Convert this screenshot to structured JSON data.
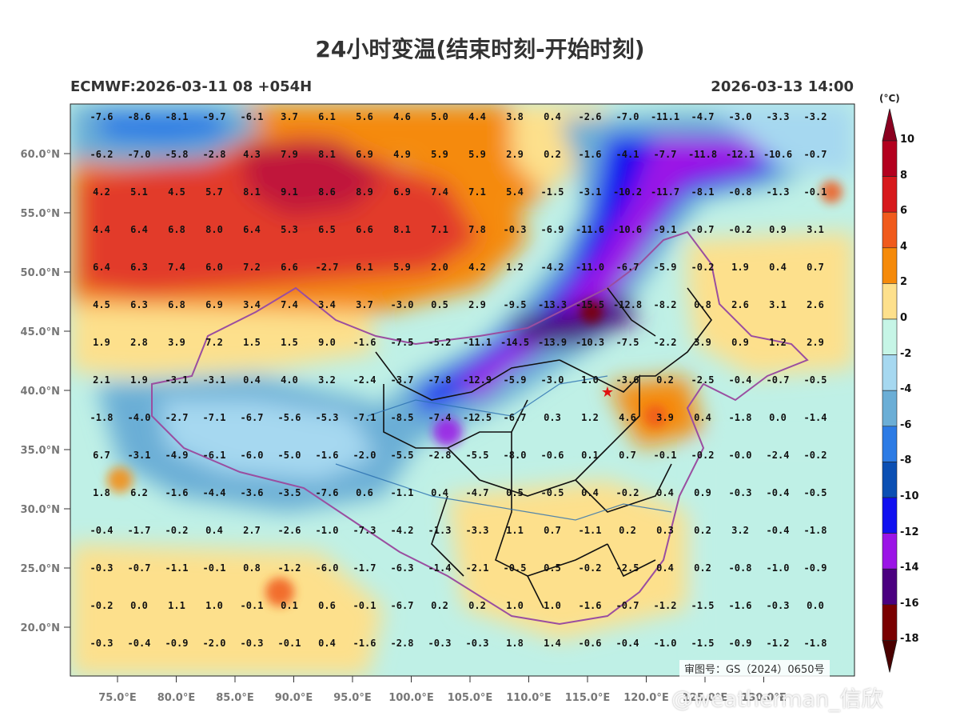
{
  "title": "24小时变温(结束时刻-开始时刻)",
  "model_run": "ECMWF:2026-03-11 08 +054H",
  "valid_time": "2026-03-13 14:00",
  "unit": "(°C)",
  "review_number": "审图号：GS（2024）0650号",
  "watermark": "@weatherman_信欣",
  "lat_ticks": [
    "60.0°N",
    "55.0°N",
    "50.0°N",
    "45.0°N",
    "40.0°N",
    "35.0°N",
    "30.0°N",
    "25.0°N",
    "20.0°N"
  ],
  "lon_ticks": [
    "75.0°E",
    "80.0°E",
    "85.0°E",
    "90.0°E",
    "95.0°E",
    "100.0°E",
    "105.0°E",
    "110.0°E",
    "115.0°E",
    "120.0°E",
    "125.0°E",
    "130.0°E"
  ],
  "colorbar": {
    "labels": [
      "10",
      "8",
      "6",
      "4",
      "2",
      "0",
      "-2",
      "-4",
      "-6",
      "-8",
      "-10",
      "-12",
      "-14",
      "-16",
      "-18"
    ],
    "colors": [
      "#b3001e",
      "#d7191c",
      "#f05a1c",
      "#f58a0a",
      "#fde08c",
      "#c6f5e6",
      "#a6d8f0",
      "#6baed6",
      "#2c7be5",
      "#0b4fb3",
      "#1010f0",
      "#9b14e6",
      "#4b0080",
      "#7a0000"
    ],
    "top_color": "#8b0020",
    "bottom_color": "#4a0000"
  },
  "grid_values": [
    [
      "-7.6",
      "-8.6",
      "-8.1",
      "-9.7",
      "-6.1",
      "3.7",
      "6.1",
      "5.6",
      "4.6",
      "5.0",
      "4.4",
      "3.8",
      "0.4",
      "-2.6",
      "-7.0",
      "-11.1",
      "-4.7",
      "-3.0",
      "-3.3",
      "-3.2"
    ],
    [
      "-6.2",
      "-7.0",
      "-5.8",
      "-2.8",
      "4.3",
      "7.9",
      "8.1",
      "6.9",
      "4.9",
      "5.9",
      "5.9",
      "2.9",
      "0.2",
      "-1.6",
      "-4.1",
      "-7.7",
      "-11.8",
      "-12.1",
      "-10.6",
      "-0.7"
    ],
    [
      "4.2",
      "5.1",
      "4.5",
      "5.7",
      "8.1",
      "9.1",
      "8.6",
      "8.9",
      "6.9",
      "7.4",
      "7.1",
      "5.4",
      "-1.5",
      "-3.1",
      "-10.2",
      "-11.7",
      "-8.1",
      "-0.8",
      "-1.3",
      "-0.1"
    ],
    [
      "4.4",
      "6.4",
      "6.8",
      "8.0",
      "6.4",
      "5.3",
      "6.5",
      "6.6",
      "8.1",
      "7.1",
      "7.8",
      "-0.3",
      "-6.9",
      "-11.6",
      "-10.6",
      "-9.1",
      "-0.7",
      "-0.2",
      "0.9",
      "3.1"
    ],
    [
      "6.4",
      "6.3",
      "7.4",
      "6.0",
      "7.2",
      "6.6",
      "-2.7",
      "6.1",
      "5.9",
      "2.0",
      "4.2",
      "1.2",
      "-4.2",
      "-11.0",
      "-6.7",
      "-5.9",
      "-0.2",
      "1.9",
      "0.4",
      "0.7"
    ],
    [
      "4.5",
      "6.3",
      "6.8",
      "6.9",
      "3.4",
      "7.4",
      "3.4",
      "3.7",
      "-3.0",
      "0.5",
      "2.9",
      "-9.5",
      "-13.3",
      "-15.5",
      "-12.8",
      "-8.2",
      "0.8",
      "2.6",
      "3.1",
      "2.6"
    ],
    [
      "1.9",
      "2.8",
      "3.9",
      "7.2",
      "1.5",
      "1.5",
      "9.0",
      "-1.6",
      "-7.5",
      "-5.2",
      "-11.1",
      "-14.5",
      "-13.9",
      "-10.3",
      "-7.5",
      "-2.2",
      "3.9",
      "0.9",
      "1.2",
      "2.9"
    ],
    [
      "2.1",
      "1.9",
      "-3.1",
      "-3.1",
      "0.4",
      "4.0",
      "3.2",
      "-2.4",
      "-3.7",
      "-7.8",
      "-12.9",
      "-5.9",
      "-3.0",
      "1.0",
      "-3.6",
      "0.2",
      "-2.5",
      "-0.4",
      "-0.7",
      "-0.5"
    ],
    [
      "-1.8",
      "-4.0",
      "-2.7",
      "-7.1",
      "-6.7",
      "-5.6",
      "-5.3",
      "-7.1",
      "-8.5",
      "-7.4",
      "-12.5",
      "-6.7",
      "0.3",
      "1.2",
      "4.6",
      "3.9",
      "0.4",
      "-1.8",
      "0.0",
      "-1.4"
    ],
    [
      "6.7",
      "-3.1",
      "-4.9",
      "-6.1",
      "-6.0",
      "-5.0",
      "-1.6",
      "-2.0",
      "-5.5",
      "-2.8",
      "-5.5",
      "-8.0",
      "-0.6",
      "0.1",
      "0.7",
      "-0.1",
      "-0.2",
      "-0.0",
      "-2.4",
      "-0.2"
    ],
    [
      "1.8",
      "6.2",
      "-1.6",
      "-4.4",
      "-3.6",
      "-3.5",
      "-7.6",
      "0.6",
      "-1.1",
      "0.4",
      "-4.7",
      "0.5",
      "-0.5",
      "0.4",
      "-0.2",
      "0.4",
      "0.9",
      "-0.3",
      "-0.4",
      "-0.5"
    ],
    [
      "-0.4",
      "-1.7",
      "-0.2",
      "0.4",
      "2.7",
      "-2.6",
      "-1.0",
      "-7.3",
      "-4.2",
      "-1.3",
      "-3.3",
      "1.1",
      "0.7",
      "-1.1",
      "0.2",
      "0.3",
      "0.2",
      "3.2",
      "-0.4",
      "-1.8"
    ],
    [
      "-0.3",
      "-0.7",
      "-1.1",
      "-0.1",
      "0.8",
      "-1.2",
      "-6.0",
      "-1.7",
      "-6.3",
      "-1.4",
      "-2.1",
      "-0.5",
      "0.5",
      "-0.2",
      "-2.5",
      "0.4",
      "0.2",
      "-0.8",
      "-1.0",
      "-0.9"
    ],
    [
      "-0.2",
      "0.0",
      "1.1",
      "1.0",
      "-0.1",
      "0.1",
      "0.6",
      "-0.1",
      "-6.7",
      "0.2",
      "0.2",
      "1.0",
      "1.0",
      "-1.6",
      "-0.7",
      "-1.2",
      "-1.5",
      "-1.6",
      "-0.3",
      "0.0"
    ],
    [
      "-0.3",
      "-0.4",
      "-0.9",
      "-2.0",
      "-0.3",
      "-0.1",
      "0.4",
      "-1.6",
      "-2.8",
      "-0.3",
      "-0.3",
      "1.8",
      "1.4",
      "-0.6",
      "-0.4",
      "-1.0",
      "-1.5",
      "-0.9",
      "-1.2",
      "-1.8"
    ]
  ]
}
